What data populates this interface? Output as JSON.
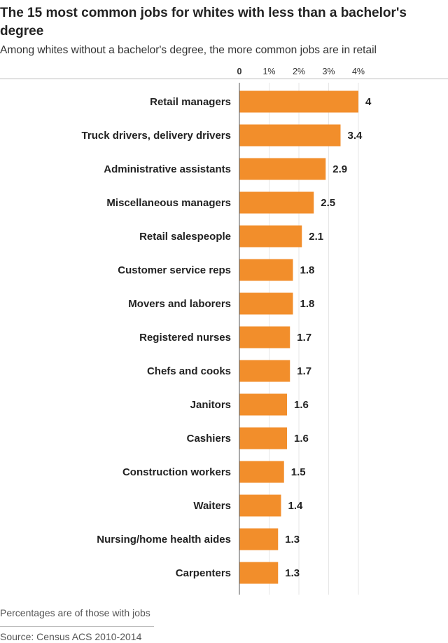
{
  "title": "The 15 most common jobs for whites with less than a bachelor's degree",
  "subtitle": "Among whites without a bachelor's degree, the more common jobs are in retail",
  "note": "Percentages are of those with jobs",
  "source": "Source: Census ACS 2010-2014",
  "colors": {
    "bar": "#f28e2b",
    "axis": "#555555",
    "grid": "#e6e6e6"
  },
  "chart_data": {
    "type": "bar",
    "orientation": "horizontal",
    "title": "The 15 most common jobs for whites with less than a bachelor's degree",
    "subtitle": "Among whites without a bachelor's degree, the more common jobs are in retail",
    "xlim": [
      0,
      4
    ],
    "ticks": [
      0,
      1,
      2,
      3,
      4
    ],
    "tick_labels": [
      "0",
      "1%",
      "2%",
      "3%",
      "4%"
    ],
    "categories": [
      "Retail managers",
      "Truck drivers, delivery drivers",
      "Administrative assistants",
      "Miscellaneous managers",
      "Retail salespeople",
      "Customer service reps",
      "Movers and laborers",
      "Registered nurses",
      "Chefs and cooks",
      "Janitors",
      "Cashiers",
      "Construction workers",
      "Waiters",
      "Nursing/home health aides",
      "Carpenters"
    ],
    "values": [
      4,
      3.4,
      2.9,
      2.5,
      2.1,
      1.8,
      1.8,
      1.7,
      1.7,
      1.6,
      1.6,
      1.5,
      1.4,
      1.3,
      1.3
    ],
    "value_labels": [
      "4",
      "3.4",
      "2.9",
      "2.5",
      "2.1",
      "1.8",
      "1.8",
      "1.7",
      "1.7",
      "1.6",
      "1.6",
      "1.5",
      "1.4",
      "1.3",
      "1.3"
    ]
  }
}
